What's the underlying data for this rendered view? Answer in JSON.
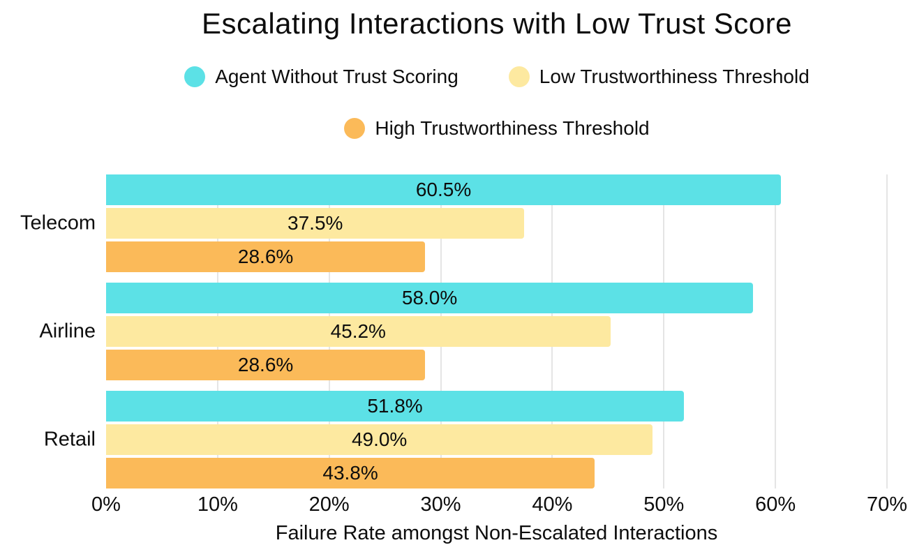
{
  "chart_data": {
    "type": "bar",
    "orientation": "horizontal",
    "title": "Escalating Interactions with Low Trust Score",
    "categories": [
      "Telecom",
      "Airline",
      "Retail"
    ],
    "series": [
      {
        "name": "Agent Without Trust Scoring",
        "color": "#5CE1E6",
        "values": [
          60.5,
          58.0,
          51.8
        ]
      },
      {
        "name": "Low Trustworthiness Threshold",
        "color": "#FDE9A0",
        "values": [
          37.5,
          45.2,
          49.0
        ]
      },
      {
        "name": "High Trustworthiness Threshold",
        "color": "#FBBA59",
        "values": [
          28.6,
          28.6,
          43.8
        ]
      }
    ],
    "xlabel": "Failure Rate amongst Non-Escalated Interactions",
    "xlim": [
      0,
      70
    ],
    "xticks": [
      0,
      10,
      20,
      30,
      40,
      50,
      60,
      70
    ],
    "xtick_labels": [
      "0%",
      "10%",
      "20%",
      "30%",
      "40%",
      "50%",
      "60%",
      "70%"
    ],
    "value_suffix": "%",
    "value_decimals": 1,
    "grid": true,
    "gridline_color": "#E5E5E5",
    "text_color": "#0D0D0D",
    "background_color": "#FFFFFF",
    "legend_position": "top",
    "legend_rows": [
      2,
      1
    ],
    "bar_label_position": "inside-center"
  }
}
